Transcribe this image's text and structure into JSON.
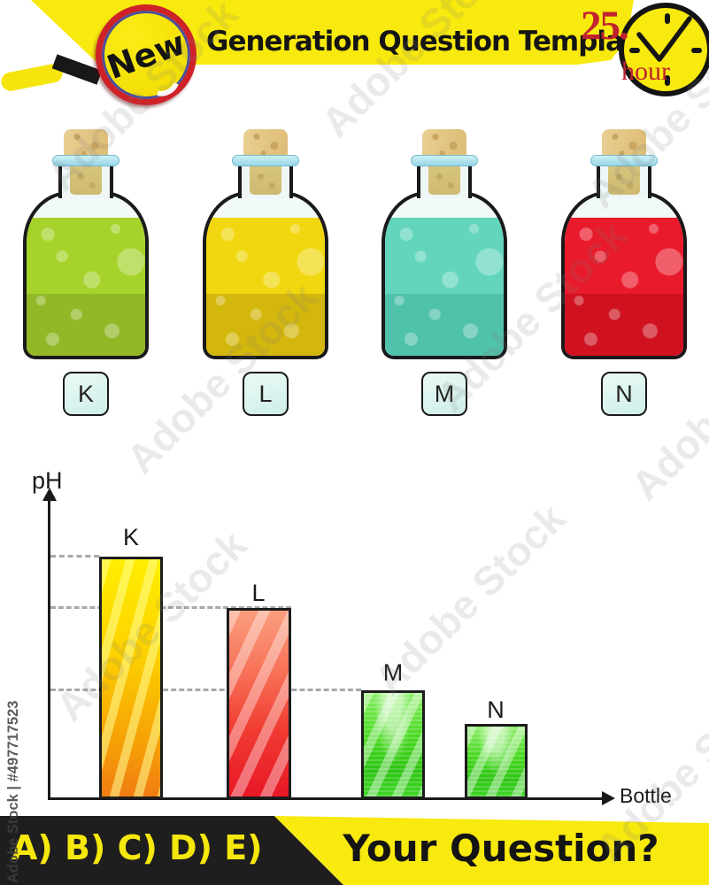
{
  "header": {
    "badge_text": "New",
    "title": "Generation Question Template",
    "clock_number": "25.",
    "clock_unit": "hour"
  },
  "bottles": {
    "items": [
      {
        "label": "K",
        "liquid_top": "#a6d32b",
        "liquid_bottom": "#92b828"
      },
      {
        "label": "L",
        "liquid_top": "#f1d70f",
        "liquid_bottom": "#d4b70d"
      },
      {
        "label": "M",
        "liquid_top": "#62d5bc",
        "liquid_bottom": "#50c2ab"
      },
      {
        "label": "N",
        "liquid_top": "#e91a2b",
        "liquid_bottom": "#cf1120"
      }
    ]
  },
  "chart_data": {
    "type": "bar",
    "title": "",
    "xlabel": "Bottle",
    "ylabel": "pH",
    "categories": [
      "K",
      "L",
      "M",
      "N"
    ],
    "values_relative": [
      274,
      216,
      123,
      85
    ],
    "axis_numeric_ticks": false,
    "gridlines_dashed_at_tops_of": [
      "K",
      "L",
      "M"
    ],
    "bar_color_themes": [
      "yellow-orange",
      "red",
      "green",
      "green"
    ],
    "legend": "none"
  },
  "footer": {
    "options": "A) B) C) D) E)",
    "question": "Your Question?"
  },
  "watermark": {
    "tile": "Adobe Stock",
    "credit": "Adobe Stock | #497717523"
  },
  "colors": {
    "banner_yellow": "#f8e90e",
    "accent_red": "#c02330",
    "outline_black": "#1a1a1a"
  }
}
